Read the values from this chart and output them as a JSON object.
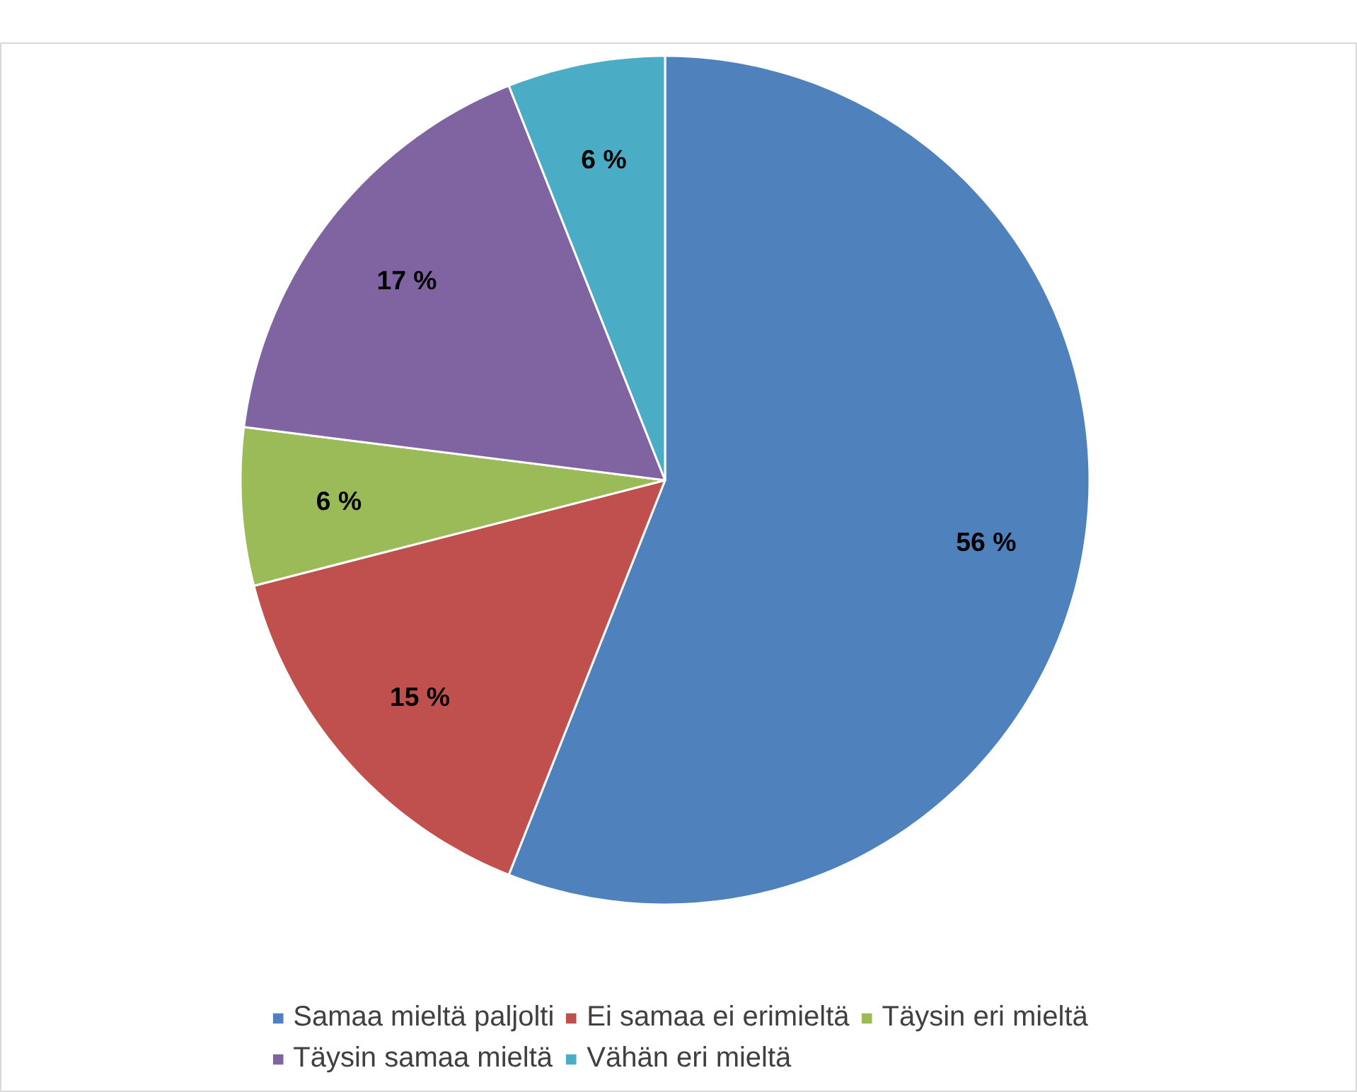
{
  "chart_data": {
    "type": "pie",
    "categories": [
      "Samaa mieltä paljolti",
      "Ei samaa ei erimieltä",
      "Täysin eri mieltä",
      "Täysin samaa mieltä",
      "Vähän eri mieltä"
    ],
    "values": [
      56,
      15,
      6,
      17,
      6
    ],
    "colors": [
      "#4f81bd",
      "#c0504d",
      "#9bbb59",
      "#8064a2",
      "#4bacc6"
    ],
    "value_labels": [
      "56 %",
      "15 %",
      "6 %",
      "17 %",
      "6 %"
    ],
    "legend": "bottom"
  }
}
